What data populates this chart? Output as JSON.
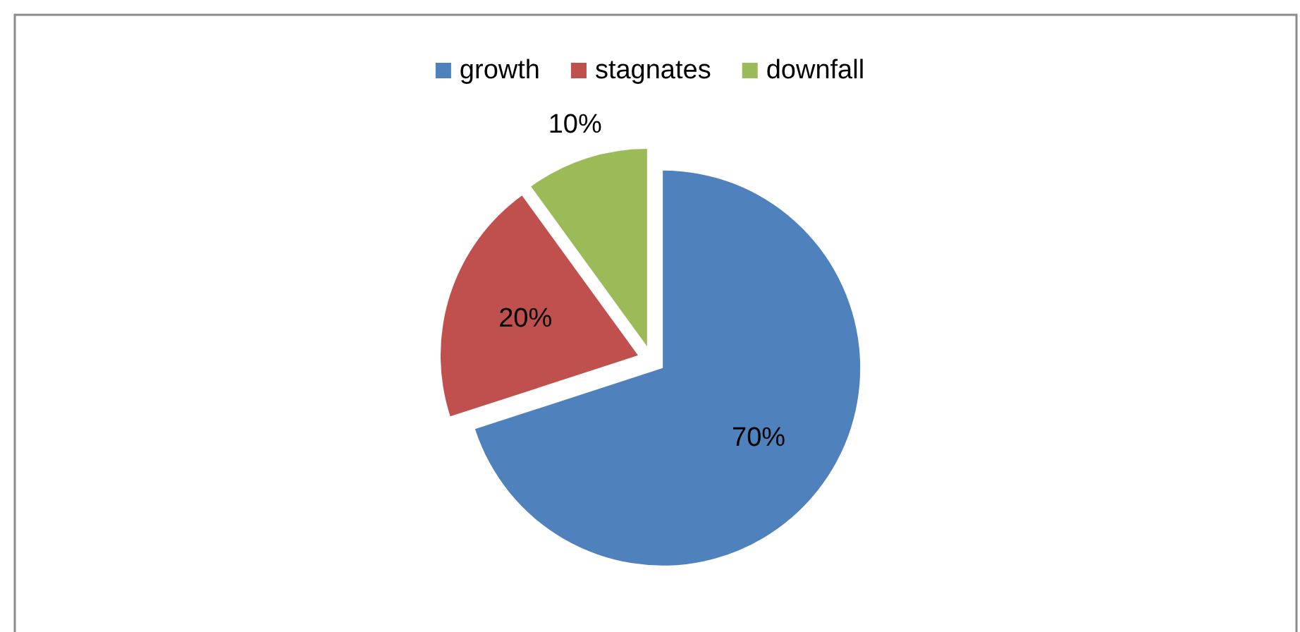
{
  "chart_data": {
    "type": "pie",
    "categories": [
      "growth",
      "stagnates",
      "downfall"
    ],
    "values": [
      70,
      20,
      10
    ],
    "colors": [
      "#4f81bd",
      "#c0504d",
      "#9bbb59"
    ],
    "value_labels": [
      "70%",
      "20%",
      "10%"
    ],
    "legend": "top"
  }
}
